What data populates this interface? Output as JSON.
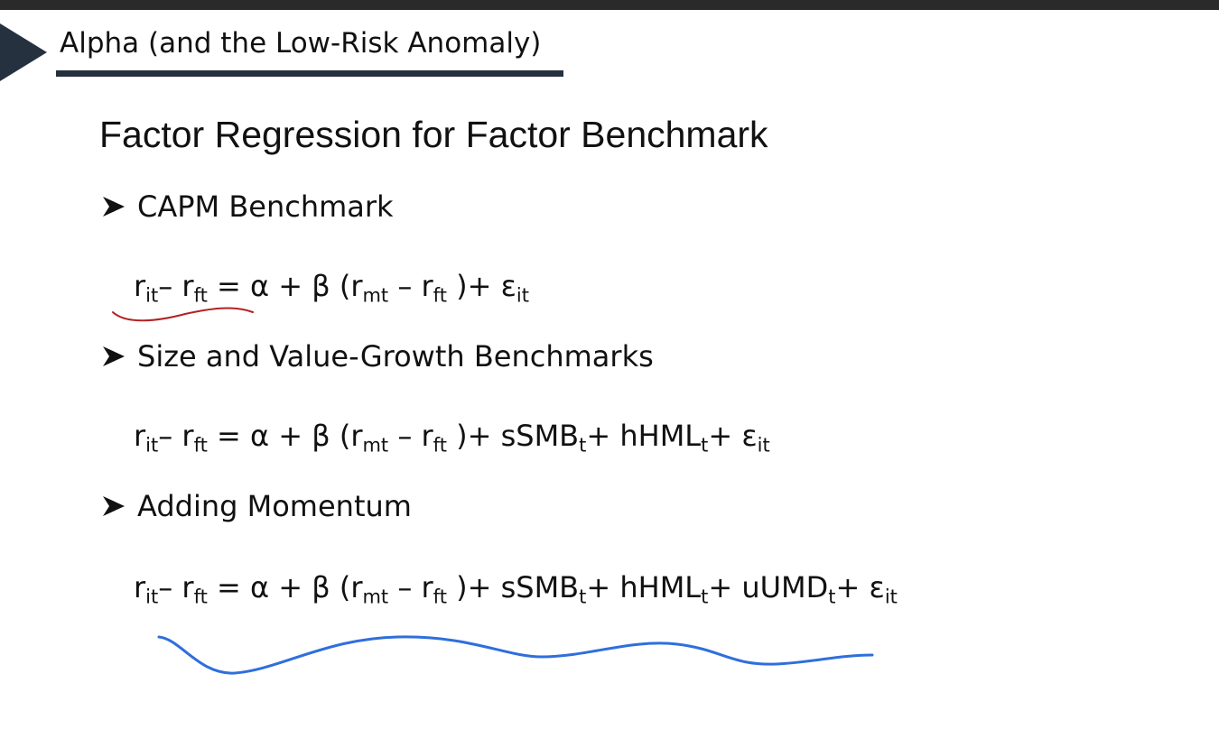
{
  "header": {
    "title": "Alpha (and the Low-Risk Anomaly)"
  },
  "slide": {
    "title": "Factor Regression for Factor Benchmark"
  },
  "sections": [
    {
      "bullet": "CAPM Benchmark",
      "equation": [
        {
          "t": "r"
        },
        {
          "s": "it"
        },
        {
          "t": "– r"
        },
        {
          "s": "ft"
        },
        {
          "t": " = α + β (r"
        },
        {
          "s": "mt"
        },
        {
          "t": " – r"
        },
        {
          "s": "ft"
        },
        {
          "t": " )+ ε"
        },
        {
          "s": "it"
        }
      ]
    },
    {
      "bullet": "Size and Value-Growth Benchmarks",
      "equation": [
        {
          "t": "r"
        },
        {
          "s": "it"
        },
        {
          "t": "– r"
        },
        {
          "s": "ft"
        },
        {
          "t": " = α + β (r"
        },
        {
          "s": "mt"
        },
        {
          "t": " – r"
        },
        {
          "s": "ft"
        },
        {
          "t": " )+ sSMB"
        },
        {
          "s": "t"
        },
        {
          "t": "+ hHML"
        },
        {
          "s": "t"
        },
        {
          "t": "+ ε"
        },
        {
          "s": "it"
        }
      ]
    },
    {
      "bullet": "Adding Momentum",
      "equation": [
        {
          "t": "r"
        },
        {
          "s": "it"
        },
        {
          "t": "– r"
        },
        {
          "s": "ft"
        },
        {
          "t": " = α + β (r"
        },
        {
          "s": "mt"
        },
        {
          "t": " – r"
        },
        {
          "s": "ft"
        },
        {
          "t": " )+ sSMB"
        },
        {
          "s": "t"
        },
        {
          "t": "+ hHML"
        },
        {
          "s": "t"
        },
        {
          "t": "+ uUMD"
        },
        {
          "s": "t"
        },
        {
          "t": "+ ε"
        },
        {
          "s": "it"
        }
      ]
    }
  ],
  "annotations": {
    "red_ink": "#b22222",
    "blue_ink": "#2f6fdc"
  },
  "colors": {
    "header_rule": "#25313f",
    "top_bar": "#2a2a2a"
  }
}
